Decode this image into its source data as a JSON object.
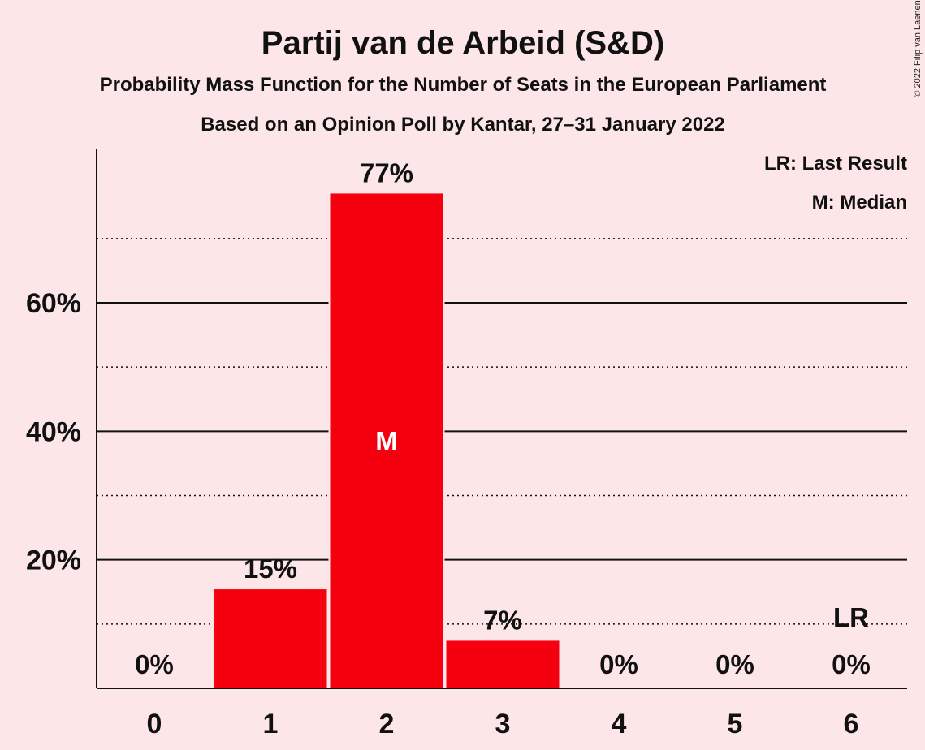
{
  "chart_data": {
    "type": "bar",
    "title": "Partij van de Arbeid (S&D)",
    "subtitle": "Probability Mass Function for the Number of Seats in the European Parliament",
    "subtitle2": "Based on an Opinion Poll by Kantar, 27–31 January 2022",
    "categories": [
      "0",
      "1",
      "2",
      "3",
      "4",
      "5",
      "6"
    ],
    "values": [
      0,
      15.4,
      77,
      7.4,
      0,
      0,
      0
    ],
    "data_labels": [
      "0%",
      "15%",
      "77%",
      "7%",
      "0%",
      "0%",
      "0%"
    ],
    "ylim": [
      0,
      84
    ],
    "yticks": [
      {
        "value": 20,
        "label": "20%"
      },
      {
        "value": 40,
        "label": "40%"
      },
      {
        "value": 60,
        "label": "60%"
      }
    ],
    "minor_gridlines": [
      10,
      30,
      50,
      70
    ],
    "median_index": 2,
    "median_label": "M",
    "last_result_index": 6,
    "last_result_label": "LR",
    "legend": [
      "LR: Last Result",
      "M: Median"
    ],
    "legend_position": "top-right",
    "copyright": "© 2022 Filip van Laenen",
    "colors": {
      "bar": "#f5000f",
      "background": "#fde6e8",
      "text": "#111111"
    }
  }
}
